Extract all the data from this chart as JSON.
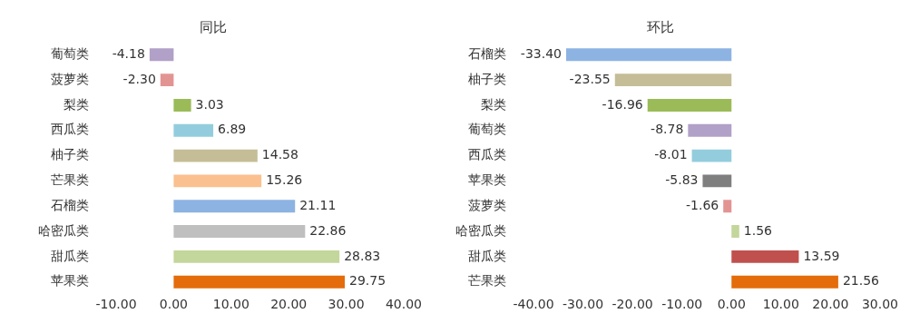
{
  "chart_data": [
    {
      "type": "bar",
      "orientation": "horizontal",
      "title": "同比",
      "categories": [
        "葡萄类",
        "菠萝类",
        "梨类",
        "西瓜类",
        "柚子类",
        "芒果类",
        "石榴类",
        "哈密瓜类",
        "甜瓜类",
        "苹果类"
      ],
      "values": [
        -4.18,
        -2.3,
        3.03,
        6.89,
        14.58,
        15.26,
        21.11,
        22.86,
        28.83,
        29.75
      ],
      "value_labels": [
        "-4.18",
        "-2.30",
        "3.03",
        "6.89",
        "14.58",
        "15.26",
        "21.11",
        "22.86",
        "28.83",
        "29.75"
      ],
      "colors": [
        "#b1a0c7",
        "#e29493",
        "#9bbb59",
        "#93cddd",
        "#c4bd97",
        "#fac08f",
        "#8db3e2",
        "#bfbfbf",
        "#c3d69b",
        "#e46c0a"
      ],
      "xlim": [
        -10,
        40
      ],
      "xticks": [
        {
          "value": -10,
          "label": "-10.00"
        },
        {
          "value": 0,
          "label": "0.00"
        },
        {
          "value": 10,
          "label": "10.00"
        },
        {
          "value": 20,
          "label": "20.00"
        },
        {
          "value": 30,
          "label": "30.00"
        },
        {
          "value": 40,
          "label": "40.00"
        }
      ],
      "grid": false,
      "legend": false
    },
    {
      "type": "bar",
      "orientation": "horizontal",
      "title": "环比",
      "categories": [
        "石榴类",
        "柚子类",
        "梨类",
        "葡萄类",
        "西瓜类",
        "苹果类",
        "菠萝类",
        "哈密瓜类",
        "甜瓜类",
        "芒果类"
      ],
      "values": [
        -33.4,
        -23.55,
        -16.96,
        -8.78,
        -8.01,
        -5.83,
        -1.66,
        1.56,
        13.59,
        21.56
      ],
      "value_labels": [
        "-33.40",
        "-23.55",
        "-16.96",
        "-8.78",
        "-8.01",
        "-5.83",
        "-1.66",
        "1.56",
        "13.59",
        "21.56"
      ],
      "colors": [
        "#8db3e2",
        "#c4bd97",
        "#9bbb59",
        "#b1a0c7",
        "#93cddd",
        "#7f7f7f",
        "#e29493",
        "#c3d69b",
        "#c0504d",
        "#e46c0a"
      ],
      "xlim": [
        -40,
        30
      ],
      "xticks": [
        {
          "value": -40,
          "label": "-40.00"
        },
        {
          "value": -30,
          "label": "-30.00"
        },
        {
          "value": -20,
          "label": "-20.00"
        },
        {
          "value": -10,
          "label": "-10.00"
        },
        {
          "value": 0,
          "label": "0.00"
        },
        {
          "value": 10,
          "label": "10.00"
        },
        {
          "value": 20,
          "label": "20.00"
        },
        {
          "value": 30,
          "label": "30.00"
        }
      ],
      "grid": false,
      "legend": false
    }
  ]
}
